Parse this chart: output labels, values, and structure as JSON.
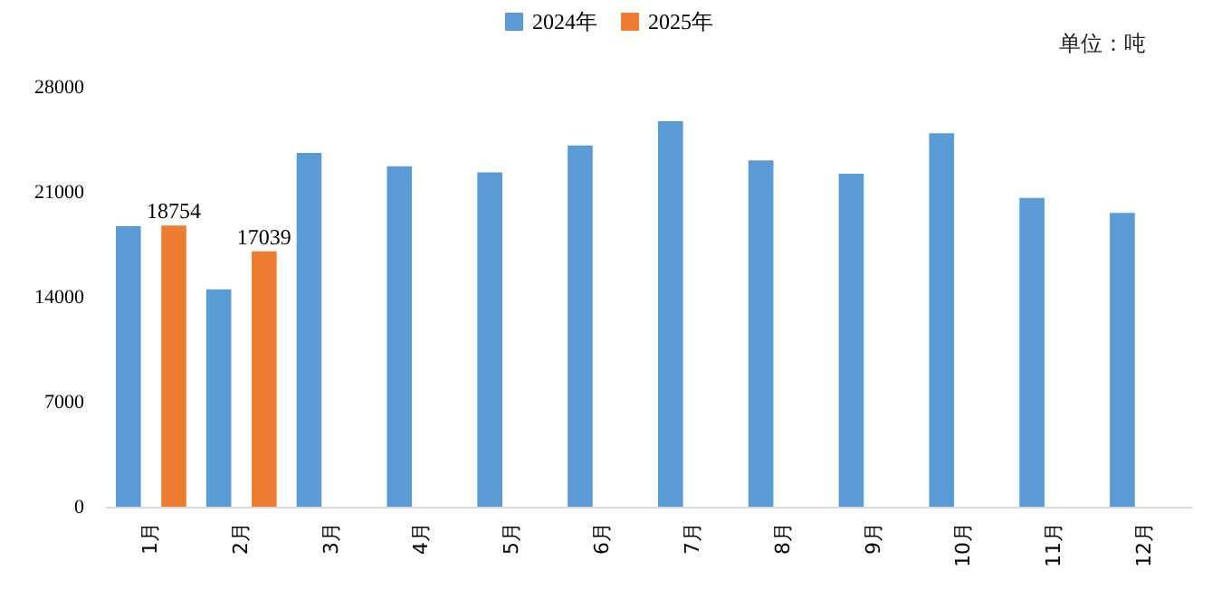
{
  "chart_data": {
    "type": "bar",
    "categories": [
      "1月",
      "2月",
      "3月",
      "4月",
      "5月",
      "6月",
      "7月",
      "8月",
      "9月",
      "10月",
      "11月",
      "12月"
    ],
    "series": [
      {
        "name": "2024年",
        "color": "#5b9bd5",
        "values": [
          18700,
          14500,
          23600,
          22700,
          22300,
          24100,
          25700,
          23100,
          22200,
          24900,
          20600,
          19600
        ]
      },
      {
        "name": "2025年",
        "color": "#ed7d31",
        "values": [
          18754,
          17039,
          null,
          null,
          null,
          null,
          null,
          null,
          null,
          null,
          null,
          null
        ],
        "value_labels": [
          "18754",
          "17039",
          null,
          null,
          null,
          null,
          null,
          null,
          null,
          null,
          null,
          null
        ]
      }
    ],
    "ylim": [
      0,
      28000
    ],
    "yticks": [
      0,
      7000,
      14000,
      21000,
      28000
    ],
    "grid": false,
    "legend": "top",
    "annotations": [
      "单位：吨"
    ]
  }
}
